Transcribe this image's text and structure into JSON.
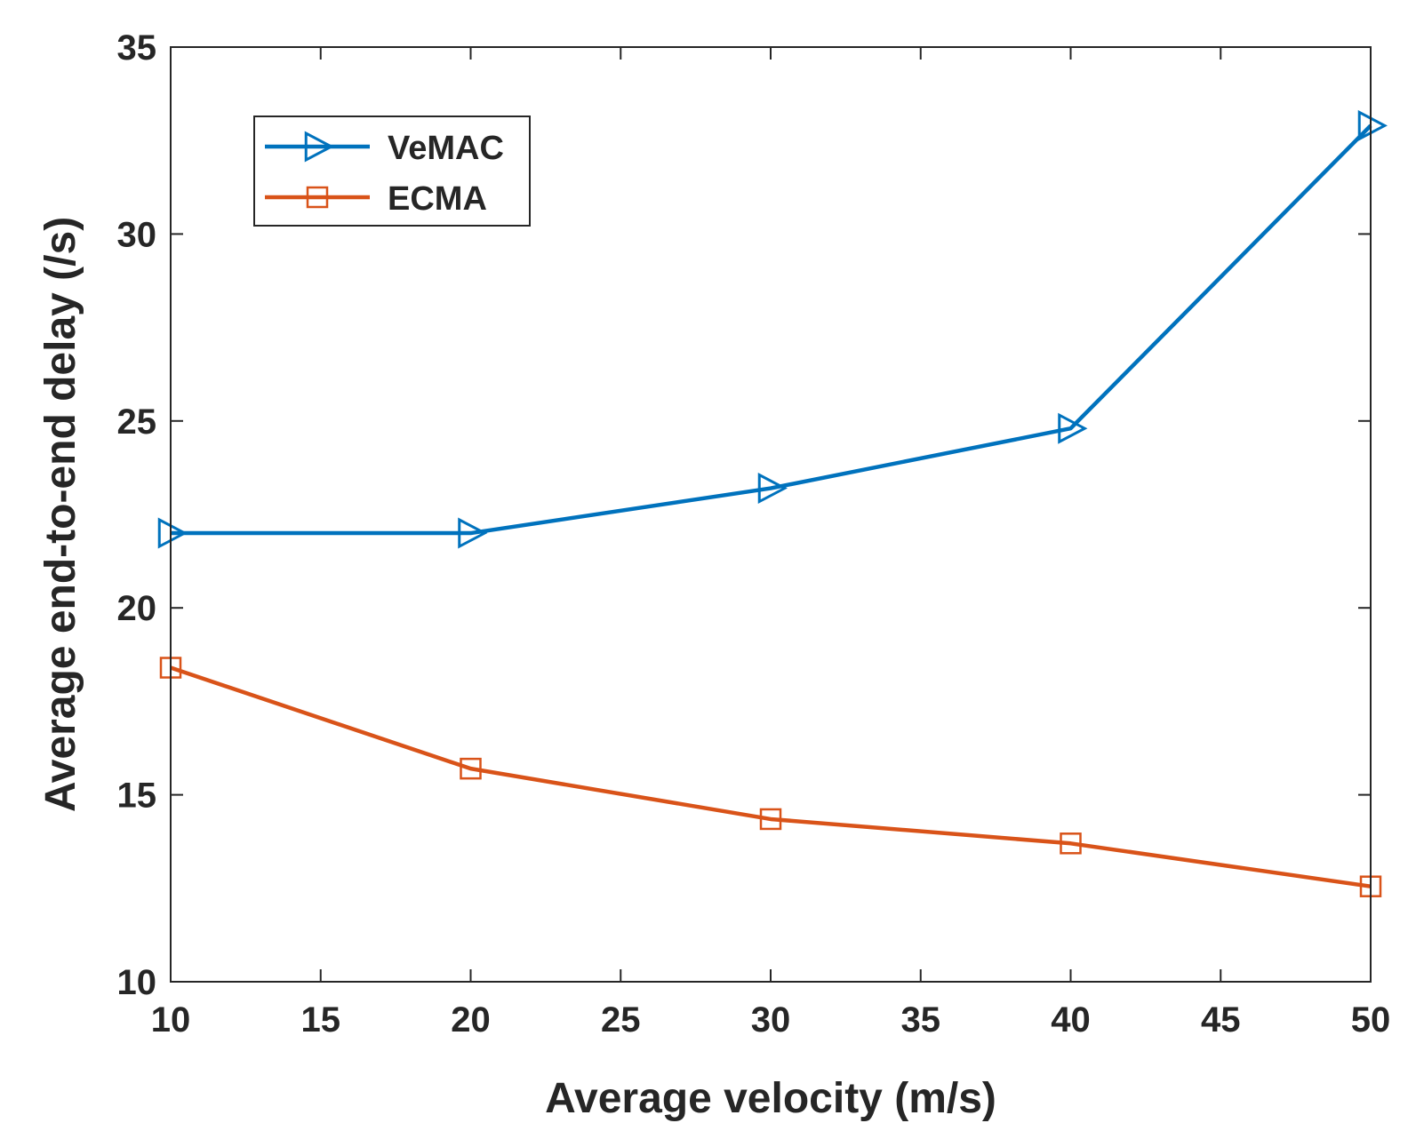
{
  "chart_data": {
    "type": "line",
    "title": "",
    "xlabel": "Average velocity (m/s)",
    "ylabel": "Average end-to-end delay (/s)",
    "x": [
      10,
      20,
      30,
      40,
      50
    ],
    "xlim": [
      10,
      50
    ],
    "ylim": [
      10,
      35
    ],
    "xticks": [
      10,
      15,
      20,
      25,
      30,
      35,
      40,
      45,
      50
    ],
    "yticks": [
      10,
      15,
      20,
      25,
      30,
      35
    ],
    "grid": false,
    "legend_position": "top-left",
    "series": [
      {
        "name": "VeMAC",
        "marker": "triangle-right",
        "color": "#0072BD",
        "values": [
          22.0,
          22.0,
          23.2,
          24.8,
          32.9
        ]
      },
      {
        "name": "ECMA",
        "marker": "square",
        "color": "#D95319",
        "values": [
          18.4,
          15.7,
          14.35,
          13.7,
          12.55
        ]
      }
    ]
  }
}
